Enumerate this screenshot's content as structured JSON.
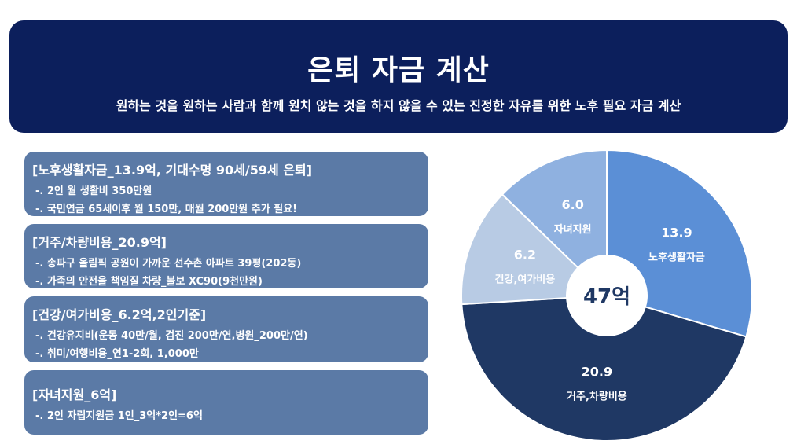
{
  "header": {
    "title": "은퇴 자금 계산",
    "subtitle": "원하는 것을 원하는 사람과 함께 원치 않는 것을 하지 않을 수 있는 진정한 자유를 위한 노후 필요 자금 계산"
  },
  "cards": [
    {
      "title": "[노후생활자금_13.9억, 기대수명 90세/59세 은퇴]",
      "lines": [
        "-. 2인 월 생활비 350만원",
        "-. 국민연금 65세이후 월 150만, 매월 200만원 추가 필요!"
      ]
    },
    {
      "title": "[거주/차량비용_20.9억]",
      "lines": [
        "-. 송파구 올림픽 공원이 가까운 선수촌 아파트 39평(202동)",
        "-. 가족의 안전을 책임질 차량_볼보 XC90(9천만원)"
      ]
    },
    {
      "title": "[건강/여가비용_6.2억,2인기준]",
      "lines": [
        "-. 건강유지비(운동 40만/월, 검진 200만/연,병원_200만/연)",
        "-. 취미/여행비용_연1-2회, 1,000만"
      ]
    },
    {
      "title": "[자녀지원_6억]",
      "lines": [
        "-. 2인 자립지원금 1인_3억*2인=6억"
      ]
    }
  ],
  "chart_data": {
    "type": "pie",
    "center_label": "47억",
    "slices": [
      {
        "label": "노후생활자금",
        "value": 13.9,
        "color": "#5b8fd6"
      },
      {
        "label": "거주,차량비용",
        "value": 20.9,
        "color": "#1f3864"
      },
      {
        "label": "건강,여가비용",
        "value": 6.2,
        "color": "#b8cbe4"
      },
      {
        "label": "자녀지원",
        "value": 6.0,
        "color": "#8fb1e0"
      }
    ]
  }
}
